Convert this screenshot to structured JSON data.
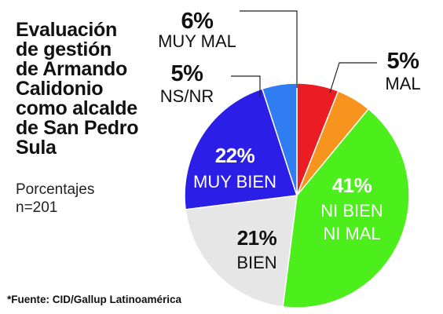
{
  "title_lines": [
    "Evaluación",
    "de gestión",
    "de Armando",
    "Calidonio",
    "como alcalde",
    "de San Pedro",
    "Sula"
  ],
  "subtitle_lines": [
    "Porcentajes",
    "n=201"
  ],
  "source": "*Fuente: CID/Gallup Latinoamérica",
  "chart_data": {
    "type": "pie",
    "title": "Evaluación de gestión de Armando Calidonio como alcalde de San Pedro Sula",
    "subtitle": "Porcentajes n=201",
    "unit": "%",
    "slices": [
      {
        "label": "MUY MAL",
        "value": 6,
        "value_label": "6%",
        "color": "#ec1c24"
      },
      {
        "label": "MAL",
        "value": 5,
        "value_label": "5%",
        "color": "#f7941d"
      },
      {
        "label": "NI BIEN NI MAL",
        "value": 41,
        "value_label": "41%",
        "color": "#4cee1c"
      },
      {
        "label": "BIEN",
        "value": 21,
        "value_label": "21%",
        "color": "#e6e6e6"
      },
      {
        "label": "MUY BIEN",
        "value": 22,
        "value_label": "22%",
        "color": "#2b1ee6"
      },
      {
        "label": "NS/NR",
        "value": 5,
        "value_label": "5%",
        "color": "#2f7df0"
      }
    ]
  }
}
